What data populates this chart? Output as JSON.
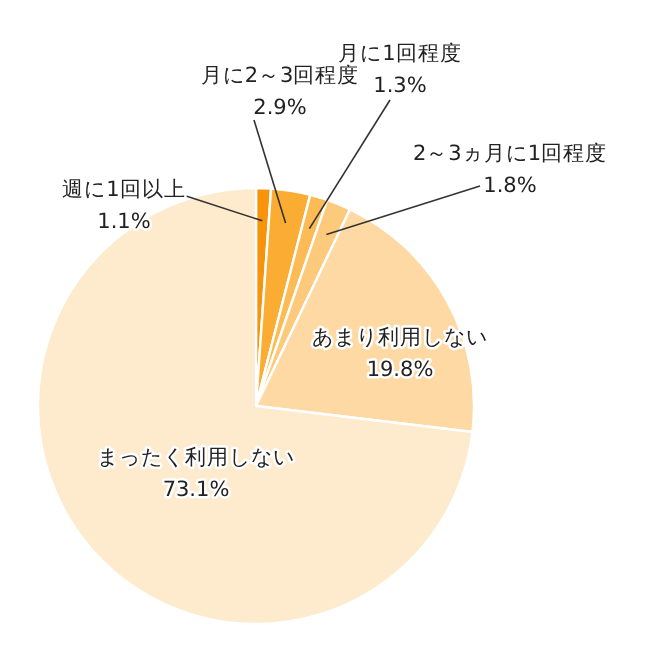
{
  "chart_data": {
    "type": "pie",
    "categories": [
      "週に1回以上",
      "月に2～3回程度",
      "月に1回程度",
      "2～3ヵ月に1回程度",
      "あまり利用しない",
      "まったく利用しない"
    ],
    "values": [
      1.1,
      2.9,
      1.3,
      1.8,
      19.8,
      73.1
    ],
    "colors": [
      "#f7940c",
      "#fbad33",
      "#fcbb55",
      "#fdca7c",
      "#fed9a4",
      "#feeacc"
    ],
    "value_labels": [
      "1.1%",
      "2.9%",
      "1.3%",
      "1.8%",
      "19.8%",
      "73.1%"
    ]
  }
}
